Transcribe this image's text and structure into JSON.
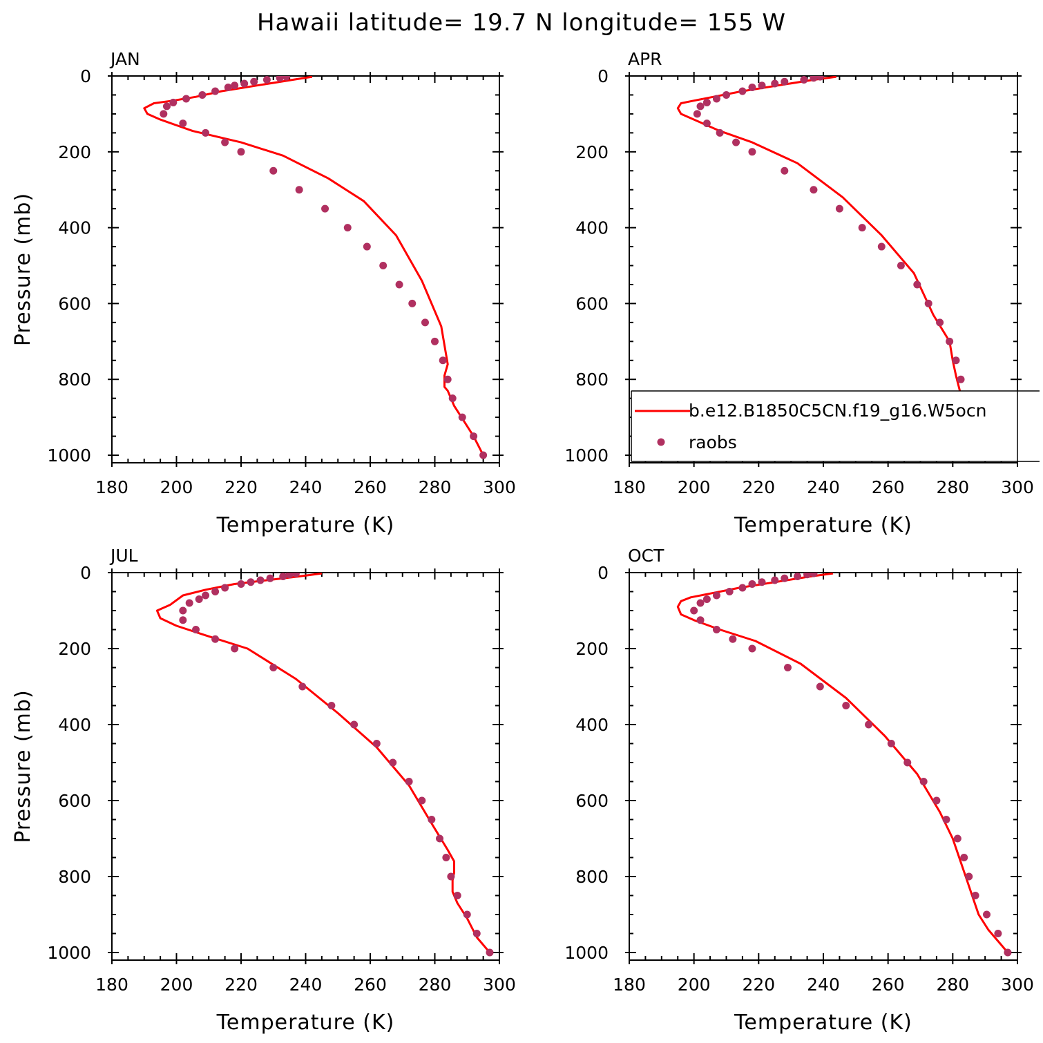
{
  "figure": {
    "title": "Hawaii  latitude= 19.7 N longitude= 155 W"
  },
  "chart_data": [
    {
      "type": "line",
      "panel": "JAN",
      "xlabel": "Temperature (K)",
      "ylabel": "Pressure (mb)",
      "xlim": [
        180,
        300
      ],
      "ylim": [
        1020,
        0
      ],
      "xticks": [
        180,
        200,
        220,
        240,
        260,
        280,
        300
      ],
      "yticks": [
        0,
        200,
        400,
        600,
        800,
        1000
      ],
      "series": [
        {
          "name": "b.e12.B1850C5CN.f19_g16.W5ocn",
          "style": "line",
          "color": "#ff0000",
          "x": [
            242,
            236,
            225,
            214,
            206,
            199,
            193,
            190,
            191,
            195,
            205,
            220,
            233,
            247,
            258,
            268,
            276,
            282,
            284,
            283,
            283,
            284,
            286,
            289,
            292,
            295
          ],
          "y": [
            2,
            10,
            25,
            40,
            55,
            65,
            72,
            85,
            100,
            115,
            145,
            175,
            210,
            270,
            330,
            420,
            540,
            660,
            760,
            790,
            820,
            830,
            870,
            910,
            950,
            1000
          ]
        },
        {
          "name": "raobs",
          "style": "markers",
          "color": "#b03060",
          "x": [
            234,
            232,
            228,
            224,
            221,
            218,
            216,
            212,
            208,
            203,
            199,
            197,
            196,
            202,
            209,
            215,
            220,
            230,
            238,
            246,
            253,
            259,
            264,
            269,
            273,
            277,
            280,
            282.5,
            284,
            285.5,
            288.5,
            292,
            295
          ],
          "y": [
            2,
            5,
            10,
            15,
            20,
            25,
            30,
            40,
            50,
            60,
            70,
            80,
            100,
            125,
            150,
            175,
            200,
            250,
            300,
            350,
            400,
            450,
            500,
            550,
            600,
            650,
            700,
            750,
            800,
            850,
            900,
            950,
            1000
          ]
        }
      ]
    },
    {
      "type": "line",
      "panel": "APR",
      "xlabel": "Temperature (K)",
      "ylabel": "",
      "xlim": [
        180,
        300
      ],
      "ylim": [
        1020,
        0
      ],
      "xticks": [
        180,
        200,
        220,
        240,
        260,
        280,
        300
      ],
      "yticks": [
        0,
        200,
        400,
        600,
        800,
        1000
      ],
      "legend": {
        "placement": "bottom",
        "entries": [
          "b.e12.B1850C5CN.f19_g16.W5ocn",
          "raobs"
        ]
      },
      "series": [
        {
          "name": "b.e12.B1850C5CN.f19_g16.W5ocn",
          "style": "line",
          "color": "#ff0000",
          "x": [
            244,
            237,
            226,
            215,
            206,
            200,
            196,
            195,
            196,
            200,
            208,
            218,
            232,
            246,
            258,
            268,
            274,
            279,
            280,
            281,
            282.5,
            284,
            286,
            288,
            291,
            295
          ],
          "y": [
            2,
            10,
            25,
            40,
            55,
            65,
            72,
            85,
            100,
            115,
            145,
            175,
            230,
            320,
            420,
            520,
            630,
            700,
            750,
            790,
            840,
            880,
            910,
            940,
            970,
            1000
          ]
        },
        {
          "name": "raobs",
          "style": "markers",
          "color": "#b03060",
          "x": [
            239,
            237,
            234,
            228,
            225,
            221,
            218,
            215,
            210,
            207,
            204,
            202,
            201,
            204,
            208,
            213,
            218,
            228,
            237,
            245,
            252,
            258,
            264,
            269,
            272.5,
            276,
            279,
            281,
            282.5,
            285,
            288,
            291,
            295
          ],
          "y": [
            2,
            5,
            10,
            15,
            20,
            25,
            30,
            40,
            50,
            60,
            70,
            80,
            100,
            125,
            150,
            175,
            200,
            250,
            300,
            350,
            400,
            450,
            500,
            550,
            600,
            650,
            700,
            750,
            800,
            850,
            900,
            950,
            1000
          ]
        }
      ]
    },
    {
      "type": "line",
      "panel": "JUL",
      "xlabel": "Temperature (K)",
      "ylabel": "Pressure (mb)",
      "xlim": [
        180,
        300
      ],
      "ylim": [
        1020,
        0
      ],
      "xticks": [
        180,
        200,
        220,
        240,
        260,
        280,
        300
      ],
      "yticks": [
        0,
        200,
        400,
        600,
        800,
        1000
      ],
      "series": [
        {
          "name": "b.e12.B1850C5CN.f19_g16.W5ocn",
          "style": "line",
          "color": "#ff0000",
          "x": [
            245,
            238,
            228,
            218,
            209,
            202,
            198,
            194,
            195,
            200,
            209,
            222,
            237,
            250,
            262,
            272,
            279,
            284,
            286,
            286,
            285.5,
            285.5,
            287,
            290,
            293,
            297
          ],
          "y": [
            2,
            10,
            20,
            30,
            45,
            60,
            85,
            100,
            120,
            140,
            165,
            200,
            280,
            370,
            460,
            560,
            660,
            730,
            760,
            790,
            810,
            840,
            870,
            910,
            960,
            1000
          ]
        },
        {
          "name": "raobs",
          "style": "markers",
          "color": "#b03060",
          "x": [
            237,
            235,
            233,
            229,
            226,
            223,
            220,
            215,
            212,
            209,
            207,
            204,
            202,
            202,
            206,
            212,
            218,
            230,
            239,
            248,
            255,
            262,
            267,
            272,
            276,
            279,
            281.5,
            283.5,
            285,
            287,
            290,
            293,
            297
          ],
          "y": [
            2,
            5,
            10,
            15,
            20,
            25,
            30,
            40,
            50,
            60,
            70,
            80,
            100,
            125,
            150,
            175,
            200,
            250,
            300,
            350,
            400,
            450,
            500,
            550,
            600,
            650,
            700,
            750,
            800,
            850,
            900,
            950,
            1000
          ]
        }
      ]
    },
    {
      "type": "line",
      "panel": "OCT",
      "xlabel": "Temperature (K)",
      "ylabel": "",
      "xlim": [
        180,
        300
      ],
      "ylim": [
        1020,
        0
      ],
      "xticks": [
        180,
        200,
        220,
        240,
        260,
        280,
        300
      ],
      "yticks": [
        0,
        200,
        400,
        600,
        800,
        1000
      ],
      "series": [
        {
          "name": "b.e12.B1850C5CN.f19_g16.W5ocn",
          "style": "line",
          "color": "#ff0000",
          "x": [
            243,
            236,
            225,
            214,
            205,
            199,
            196,
            195,
            196,
            200,
            208,
            219,
            233,
            247,
            259,
            269,
            276,
            280,
            282,
            284,
            286,
            288,
            291,
            295,
            297
          ],
          "y": [
            2,
            10,
            25,
            40,
            55,
            65,
            75,
            90,
            110,
            125,
            150,
            180,
            240,
            330,
            430,
            530,
            630,
            700,
            750,
            800,
            850,
            900,
            940,
            980,
            1000
          ]
        },
        {
          "name": "raobs",
          "style": "markers",
          "color": "#b03060",
          "x": [
            237,
            235,
            232,
            228,
            225,
            221,
            218,
            215,
            211,
            207,
            204,
            202,
            200,
            202,
            207,
            212,
            218,
            229,
            239,
            247,
            254,
            261,
            266,
            271,
            275,
            278,
            281.5,
            283.5,
            285,
            287,
            290.5,
            294,
            297
          ],
          "y": [
            2,
            5,
            10,
            15,
            20,
            25,
            30,
            40,
            50,
            60,
            70,
            80,
            100,
            125,
            150,
            175,
            200,
            250,
            300,
            350,
            400,
            450,
            500,
            550,
            600,
            650,
            700,
            750,
            800,
            850,
            900,
            950,
            1000
          ]
        }
      ]
    }
  ]
}
